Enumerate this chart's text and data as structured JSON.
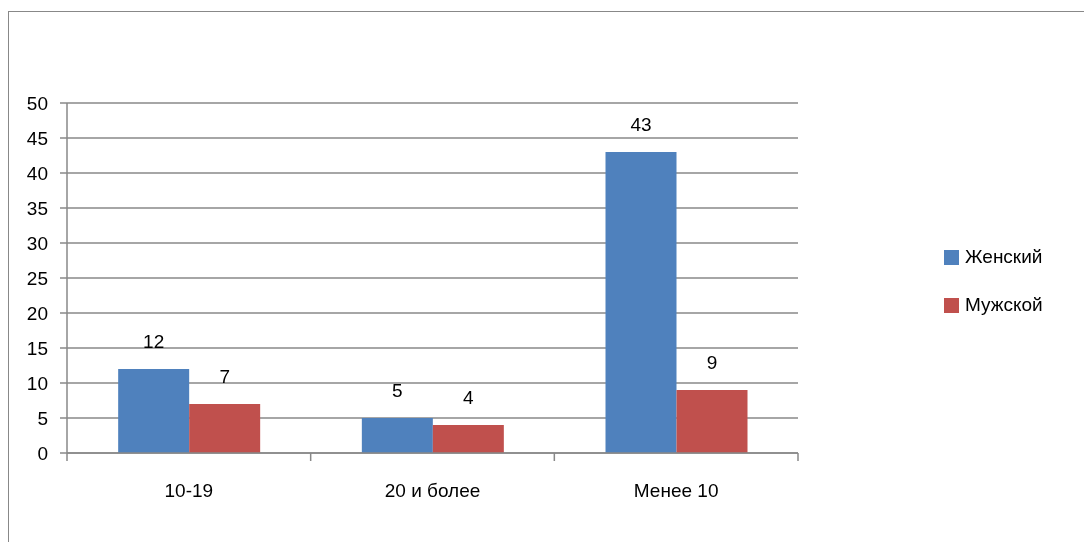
{
  "chart_data": {
    "type": "bar",
    "categories": [
      "10-19",
      "20 и более",
      "Менее 10"
    ],
    "series": [
      {
        "name": "Женский",
        "color": "#4f81bd",
        "values": [
          12,
          5,
          43
        ]
      },
      {
        "name": "Мужской",
        "color": "#c0504d",
        "values": [
          7,
          4,
          9
        ]
      }
    ],
    "ylim": [
      0,
      50
    ],
    "yticks": [
      0,
      5,
      10,
      15,
      20,
      25,
      30,
      35,
      40,
      45,
      50
    ],
    "grid": "y",
    "legend": "right",
    "data_labels": true
  }
}
